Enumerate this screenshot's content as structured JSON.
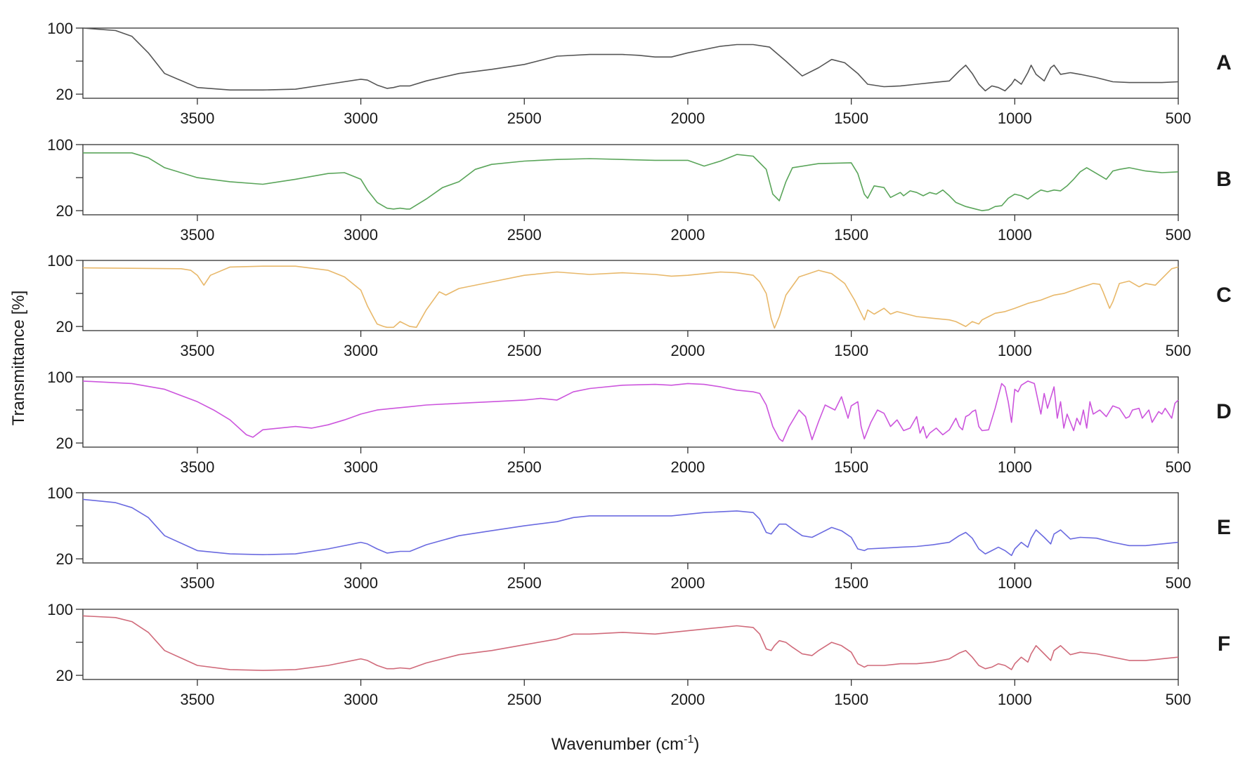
{
  "chart_data": {
    "type": "line",
    "ylabel": "Transmittance [%]",
    "xlabel": "Wavenumber (cm",
    "xlabel_sup": "-1",
    "xlabel_close": ")",
    "xlim": [
      3850,
      500
    ],
    "x_ticks": [
      "3500",
      "3000",
      "2500",
      "2000",
      "1500",
      "1000",
      "500"
    ],
    "y_ticks": [
      "100",
      "20"
    ],
    "grid": false,
    "series": [
      {
        "name": "A",
        "color": "#555555",
        "ylim": [
          15,
          100
        ],
        "x": [
          3850,
          3750,
          3700,
          3650,
          3600,
          3500,
          3400,
          3300,
          3200,
          3100,
          3000,
          2980,
          2950,
          2920,
          2900,
          2880,
          2850,
          2800,
          2700,
          2600,
          2500,
          2400,
          2300,
          2200,
          2150,
          2100,
          2050,
          2000,
          1950,
          1900,
          1850,
          1800,
          1750,
          1700,
          1650,
          1600,
          1560,
          1520,
          1480,
          1450,
          1400,
          1350,
          1300,
          1250,
          1200,
          1170,
          1150,
          1130,
          1110,
          1090,
          1070,
          1050,
          1030,
          1010,
          1000,
          980,
          960,
          950,
          935,
          910,
          890,
          880,
          860,
          830,
          800,
          750,
          700,
          650,
          600,
          550,
          500
        ],
        "y": [
          100,
          97,
          90,
          70,
          45,
          28,
          25,
          25,
          26,
          32,
          38,
          37,
          31,
          27,
          28,
          30,
          30,
          36,
          45,
          50,
          56,
          66,
          68,
          68,
          67,
          65,
          65,
          70,
          74,
          78,
          80,
          80,
          77,
          60,
          42,
          52,
          62,
          58,
          45,
          32,
          29,
          30,
          32,
          34,
          36,
          48,
          55,
          45,
          32,
          24,
          30,
          28,
          24,
          32,
          38,
          32,
          46,
          55,
          44,
          36,
          52,
          55,
          44,
          46,
          44,
          40,
          35,
          34,
          34,
          34,
          35
        ]
      },
      {
        "name": "B",
        "color": "#5aa55a",
        "ylim": [
          15,
          100
        ],
        "x": [
          3850,
          3700,
          3650,
          3600,
          3500,
          3400,
          3300,
          3200,
          3100,
          3050,
          3000,
          2980,
          2950,
          2920,
          2900,
          2880,
          2860,
          2850,
          2800,
          2750,
          2700,
          2650,
          2600,
          2500,
          2400,
          2300,
          2200,
          2100,
          2000,
          1950,
          1900,
          1850,
          1800,
          1760,
          1740,
          1720,
          1700,
          1680,
          1600,
          1500,
          1480,
          1460,
          1450,
          1430,
          1400,
          1380,
          1350,
          1340,
          1320,
          1300,
          1280,
          1260,
          1240,
          1220,
          1200,
          1180,
          1150,
          1120,
          1100,
          1080,
          1060,
          1040,
          1020,
          1000,
          980,
          960,
          940,
          920,
          900,
          880,
          860,
          840,
          820,
          800,
          780,
          750,
          720,
          700,
          680,
          650,
          600,
          550,
          500
        ],
        "y": [
          90,
          90,
          84,
          72,
          60,
          55,
          52,
          58,
          65,
          66,
          58,
          45,
          30,
          23,
          22,
          23,
          22,
          22,
          34,
          48,
          55,
          70,
          76,
          80,
          82,
          83,
          82,
          81,
          81,
          74,
          80,
          88,
          86,
          70,
          40,
          32,
          55,
          72,
          77,
          78,
          65,
          40,
          35,
          50,
          48,
          36,
          42,
          38,
          44,
          42,
          38,
          42,
          40,
          45,
          38,
          30,
          25,
          22,
          20,
          21,
          25,
          26,
          35,
          40,
          38,
          34,
          40,
          45,
          43,
          45,
          44,
          50,
          58,
          67,
          72,
          65,
          58,
          68,
          70,
          72,
          68,
          66,
          67
        ]
      },
      {
        "name": "C",
        "color": "#e8b86a",
        "ylim": [
          15,
          100
        ],
        "x": [
          3850,
          3550,
          3520,
          3500,
          3480,
          3460,
          3400,
          3300,
          3200,
          3100,
          3050,
          3000,
          2980,
          2960,
          2950,
          2930,
          2920,
          2900,
          2880,
          2860,
          2850,
          2830,
          2800,
          2760,
          2740,
          2700,
          2600,
          2500,
          2400,
          2300,
          2200,
          2100,
          2050,
          2000,
          1950,
          1900,
          1850,
          1800,
          1780,
          1760,
          1745,
          1735,
          1720,
          1700,
          1660,
          1600,
          1560,
          1520,
          1490,
          1470,
          1460,
          1450,
          1430,
          1400,
          1380,
          1360,
          1300,
          1250,
          1200,
          1180,
          1150,
          1130,
          1110,
          1100,
          1080,
          1060,
          1030,
          1000,
          960,
          920,
          900,
          880,
          850,
          800,
          760,
          740,
          730,
          710,
          700,
          680,
          650,
          620,
          600,
          570,
          550,
          520,
          500
        ],
        "y": [
          91,
          90,
          88,
          82,
          70,
          82,
          92,
          93,
          93,
          88,
          80,
          64,
          45,
          30,
          23,
          20,
          19,
          19,
          26,
          22,
          20,
          19,
          40,
          62,
          58,
          66,
          74,
          82,
          86,
          83,
          85,
          83,
          81,
          82,
          84,
          86,
          85,
          82,
          74,
          60,
          30,
          18,
          32,
          58,
          80,
          88,
          84,
          72,
          52,
          36,
          28,
          40,
          35,
          42,
          35,
          38,
          32,
          30,
          28,
          26,
          20,
          26,
          23,
          28,
          32,
          36,
          38,
          42,
          48,
          52,
          55,
          58,
          60,
          67,
          72,
          71,
          62,
          42,
          50,
          72,
          75,
          68,
          72,
          70,
          78,
          90,
          92
        ]
      },
      {
        "name": "D",
        "color": "#cc55dd",
        "ylim": [
          15,
          100
        ],
        "x": [
          3850,
          3700,
          3600,
          3500,
          3450,
          3400,
          3350,
          3330,
          3300,
          3250,
          3200,
          3150,
          3100,
          3050,
          3000,
          2950,
          2900,
          2850,
          2800,
          2700,
          2600,
          2500,
          2450,
          2400,
          2350,
          2300,
          2200,
          2100,
          2050,
          2000,
          1950,
          1900,
          1850,
          1800,
          1780,
          1760,
          1740,
          1720,
          1710,
          1690,
          1660,
          1640,
          1620,
          1600,
          1580,
          1550,
          1530,
          1510,
          1500,
          1480,
          1470,
          1460,
          1440,
          1420,
          1400,
          1380,
          1360,
          1340,
          1320,
          1300,
          1290,
          1280,
          1270,
          1260,
          1240,
          1220,
          1200,
          1180,
          1170,
          1160,
          1150,
          1140,
          1130,
          1120,
          1110,
          1100,
          1080,
          1060,
          1040,
          1030,
          1020,
          1010,
          1000,
          990,
          980,
          960,
          940,
          920,
          910,
          900,
          880,
          870,
          860,
          850,
          840,
          820,
          810,
          800,
          790,
          780,
          770,
          760,
          740,
          720,
          700,
          680,
          660,
          650,
          640,
          620,
          610,
          600,
          590,
          580,
          560,
          550,
          540,
          520,
          510,
          500
        ],
        "y": [
          95,
          92,
          85,
          70,
          60,
          48,
          30,
          27,
          36,
          38,
          40,
          38,
          42,
          48,
          55,
          60,
          62,
          64,
          66,
          68,
          70,
          72,
          74,
          72,
          82,
          86,
          90,
          91,
          90,
          92,
          91,
          88,
          84,
          82,
          80,
          66,
          40,
          25,
          22,
          40,
          60,
          52,
          24,
          46,
          66,
          60,
          76,
          50,
          65,
          70,
          40,
          25,
          45,
          60,
          56,
          40,
          48,
          35,
          38,
          52,
          32,
          40,
          26,
          32,
          38,
          30,
          36,
          50,
          40,
          36,
          52,
          54,
          58,
          60,
          40,
          35,
          36,
          62,
          92,
          88,
          70,
          45,
          85,
          82,
          90,
          95,
          92,
          55,
          80,
          62,
          88,
          50,
          70,
          38,
          55,
          35,
          50,
          42,
          60,
          38,
          70,
          55,
          60,
          52,
          65,
          62,
          50,
          52,
          60,
          62,
          50,
          55,
          60,
          45,
          58,
          55,
          62,
          50,
          68,
          72
        ]
      },
      {
        "name": "E",
        "color": "#6a6ae0",
        "ylim": [
          15,
          100
        ],
        "x": [
          3850,
          3750,
          3700,
          3650,
          3600,
          3500,
          3400,
          3300,
          3200,
          3100,
          3000,
          2980,
          2950,
          2920,
          2900,
          2880,
          2850,
          2800,
          2700,
          2600,
          2500,
          2400,
          2350,
          2300,
          2200,
          2100,
          2050,
          2000,
          1950,
          1900,
          1850,
          1800,
          1780,
          1760,
          1745,
          1735,
          1720,
          1700,
          1680,
          1650,
          1620,
          1600,
          1560,
          1530,
          1500,
          1480,
          1460,
          1450,
          1400,
          1350,
          1300,
          1250,
          1200,
          1170,
          1150,
          1130,
          1110,
          1090,
          1070,
          1050,
          1030,
          1010,
          1000,
          980,
          960,
          950,
          935,
          910,
          890,
          880,
          860,
          830,
          800,
          750,
          700,
          650,
          600,
          550,
          500
        ],
        "y": [
          92,
          88,
          82,
          70,
          48,
          30,
          26,
          25,
          26,
          32,
          40,
          38,
          32,
          27,
          28,
          29,
          29,
          37,
          48,
          54,
          60,
          65,
          70,
          72,
          72,
          72,
          72,
          74,
          76,
          77,
          78,
          76,
          68,
          52,
          50,
          55,
          62,
          62,
          56,
          48,
          46,
          50,
          58,
          54,
          46,
          32,
          30,
          32,
          33,
          34,
          35,
          37,
          40,
          48,
          52,
          45,
          32,
          26,
          30,
          34,
          30,
          24,
          32,
          40,
          34,
          45,
          55,
          46,
          38,
          50,
          55,
          44,
          46,
          45,
          40,
          36,
          36,
          38,
          40
        ]
      },
      {
        "name": "F",
        "color": "#d06a7a",
        "ylim": [
          15,
          100
        ],
        "x": [
          3850,
          3750,
          3700,
          3650,
          3600,
          3500,
          3400,
          3300,
          3200,
          3100,
          3000,
          2980,
          2950,
          2920,
          2900,
          2880,
          2850,
          2800,
          2700,
          2600,
          2500,
          2400,
          2350,
          2300,
          2200,
          2100,
          2050,
          2000,
          1950,
          1900,
          1850,
          1800,
          1780,
          1760,
          1745,
          1735,
          1720,
          1700,
          1680,
          1650,
          1620,
          1600,
          1560,
          1530,
          1500,
          1480,
          1460,
          1450,
          1400,
          1350,
          1300,
          1250,
          1200,
          1170,
          1150,
          1130,
          1110,
          1090,
          1070,
          1050,
          1030,
          1010,
          1000,
          980,
          960,
          950,
          935,
          910,
          890,
          880,
          860,
          830,
          800,
          750,
          700,
          650,
          600,
          550,
          500
        ],
        "y": [
          92,
          90,
          85,
          72,
          50,
          32,
          27,
          26,
          27,
          32,
          40,
          38,
          32,
          28,
          28,
          29,
          28,
          35,
          45,
          50,
          57,
          64,
          70,
          70,
          72,
          70,
          72,
          74,
          76,
          78,
          80,
          78,
          70,
          52,
          50,
          56,
          62,
          60,
          54,
          46,
          44,
          50,
          60,
          56,
          48,
          34,
          30,
          32,
          32,
          34,
          34,
          36,
          40,
          47,
          50,
          42,
          32,
          28,
          30,
          34,
          32,
          27,
          34,
          42,
          36,
          46,
          56,
          46,
          38,
          50,
          56,
          45,
          48,
          46,
          42,
          38,
          38,
          40,
          42
        ]
      }
    ]
  }
}
